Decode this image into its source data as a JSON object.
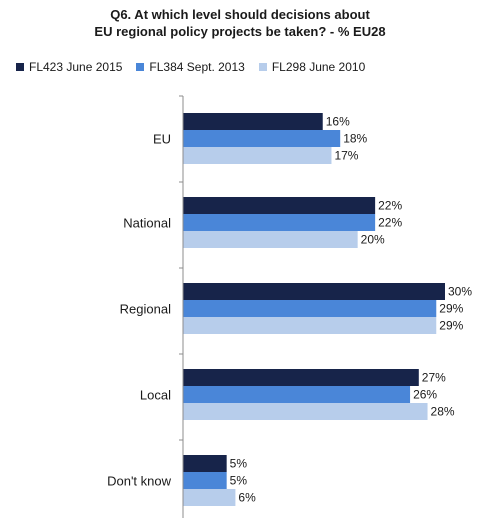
{
  "chart_data": {
    "type": "bar",
    "orientation": "horizontal",
    "title_line1": "Q6. At which level should decisions about",
    "title_line2": "EU regional policy projects be taken? - % EU28",
    "categories": [
      "EU",
      "National",
      "Regional",
      "Local",
      "Don't know"
    ],
    "series": [
      {
        "name": "FL423 June 2015",
        "color": "#17244a",
        "values": [
          16,
          22,
          30,
          27,
          5
        ]
      },
      {
        "name": "FL384 Sept. 2013",
        "color": "#4a86d8",
        "values": [
          18,
          22,
          29,
          26,
          5
        ]
      },
      {
        "name": "FL298 June 2010",
        "color": "#b7cdeb",
        "values": [
          17,
          20,
          29,
          28,
          6
        ]
      }
    ],
    "value_suffix": "%",
    "xlim": [
      0,
      30
    ],
    "legend_position": "top",
    "grid": false
  }
}
